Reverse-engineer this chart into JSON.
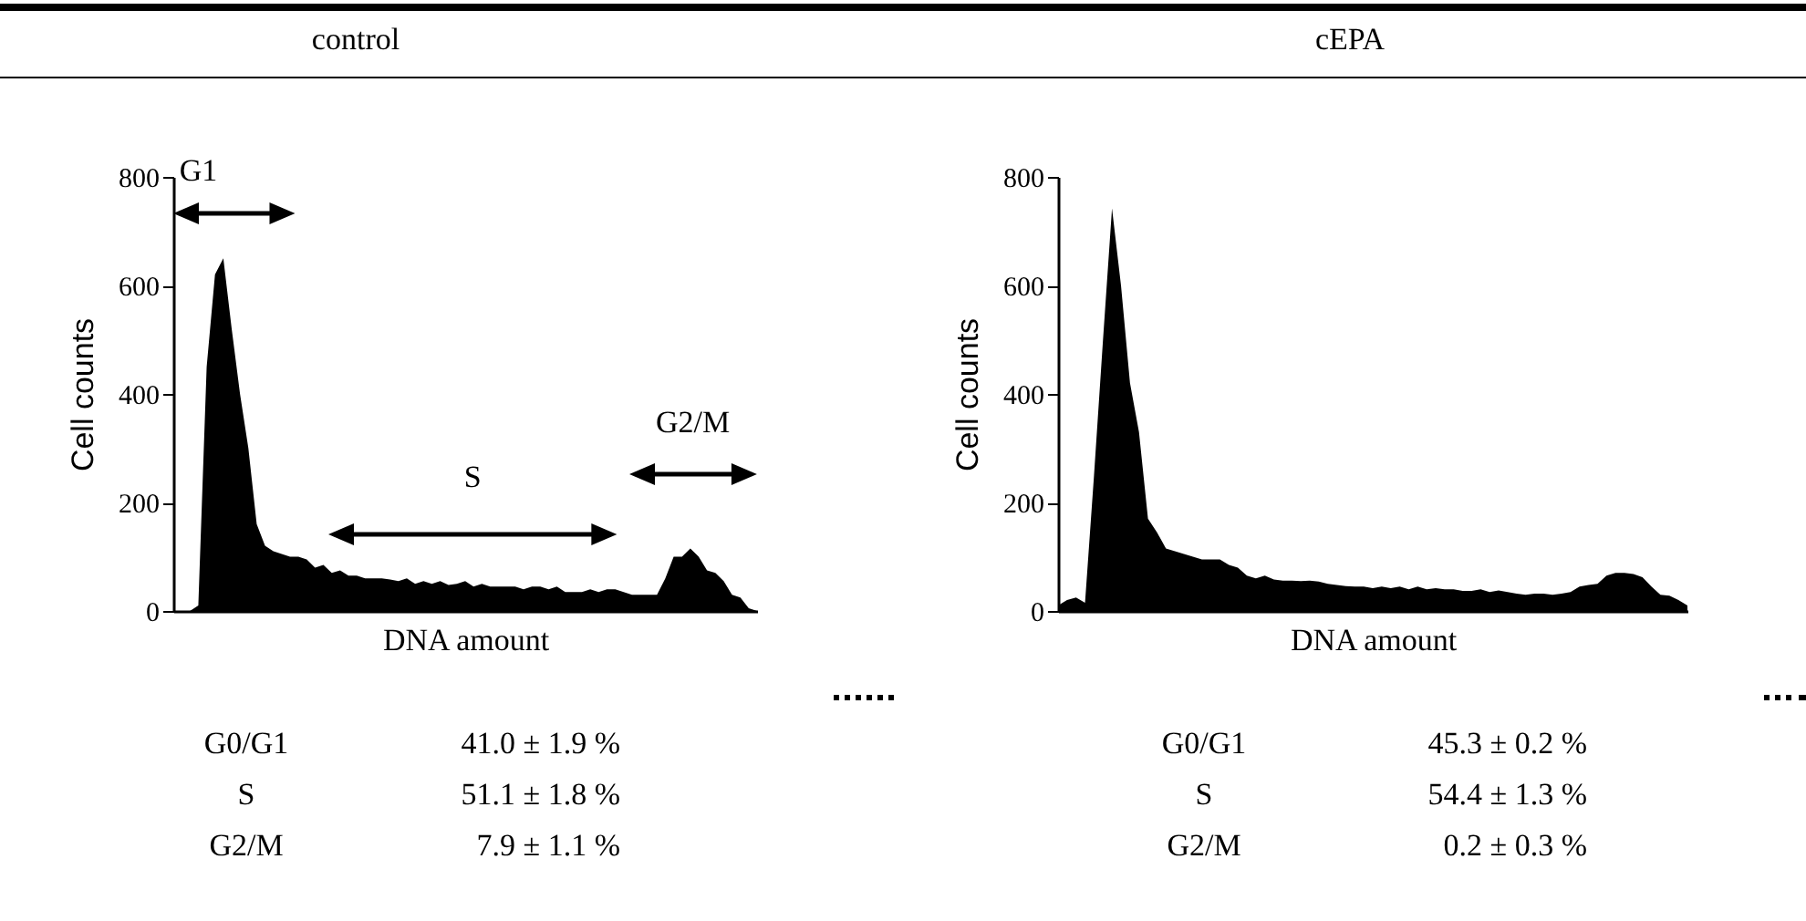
{
  "chart_data": [
    {
      "type": "area",
      "title": "control",
      "xlabel": "DNA amount",
      "ylabel": "Cell counts",
      "color": "#000000",
      "ylim": [
        0,
        800
      ],
      "yticks": [
        0,
        200,
        400,
        600,
        800
      ],
      "tick_labels": "y",
      "categories": [
        null,
        null,
        null,
        null,
        null,
        null,
        null,
        null,
        null,
        null,
        null,
        null,
        null,
        null,
        null,
        null,
        null,
        null,
        null,
        null,
        null,
        null,
        null,
        null,
        null,
        null,
        null,
        null,
        null,
        null,
        null,
        null,
        null,
        null,
        null,
        null,
        null,
        null,
        null,
        null,
        null,
        null,
        null,
        null,
        null,
        null,
        null,
        null,
        null,
        null,
        null,
        null,
        null,
        null,
        null,
        null,
        null,
        null,
        null,
        null,
        null,
        null,
        null,
        null,
        null,
        null,
        null,
        null,
        null,
        null,
        null
      ],
      "values": [
        0,
        0,
        0,
        10,
        450,
        620,
        650,
        520,
        400,
        300,
        160,
        120,
        110,
        105,
        100,
        100,
        95,
        80,
        85,
        70,
        75,
        65,
        65,
        60,
        60,
        60,
        58,
        55,
        60,
        50,
        55,
        50,
        55,
        48,
        50,
        55,
        45,
        50,
        45,
        45,
        45,
        45,
        40,
        45,
        45,
        40,
        45,
        35,
        35,
        35,
        40,
        35,
        40,
        40,
        35,
        30,
        30,
        30,
        30,
        60,
        100,
        100,
        115,
        100,
        75,
        70,
        55,
        30,
        25,
        5,
        0
      ],
      "annotations": [
        "G1",
        "S",
        "G2/M",
        "G0/G1",
        "41.0 ± 1.9 %",
        "S",
        "51.1 ± 1.8 %",
        "G2/M",
        "7.9 ± 1.1 %"
      ]
    },
    {
      "type": "area",
      "title": "cEPA",
      "xlabel": "DNA amount",
      "ylabel": "Cell counts",
      "color": "#000000",
      "ylim": [
        0,
        800
      ],
      "yticks": [
        0,
        200,
        400,
        600,
        800
      ],
      "tick_labels": "y",
      "categories": [
        null,
        null,
        null,
        null,
        null,
        null,
        null,
        null,
        null,
        null,
        null,
        null,
        null,
        null,
        null,
        null,
        null,
        null,
        null,
        null,
        null,
        null,
        null,
        null,
        null,
        null,
        null,
        null,
        null,
        null,
        null,
        null,
        null,
        null,
        null,
        null,
        null,
        null,
        null,
        null,
        null,
        null,
        null,
        null,
        null,
        null,
        null,
        null,
        null,
        null,
        null,
        null,
        null,
        null,
        null,
        null,
        null,
        null,
        null,
        null,
        null,
        null,
        null,
        null,
        null,
        null,
        null,
        null,
        null,
        null,
        null
      ],
      "values": [
        10,
        20,
        25,
        15,
        250,
        500,
        742,
        600,
        420,
        330,
        170,
        145,
        115,
        110,
        105,
        100,
        95,
        95,
        95,
        85,
        80,
        65,
        60,
        65,
        58,
        56,
        56,
        55,
        56,
        54,
        50,
        48,
        46,
        45,
        45,
        42,
        45,
        42,
        45,
        40,
        45,
        40,
        42,
        40,
        40,
        37,
        37,
        40,
        35,
        38,
        35,
        32,
        30,
        32,
        32,
        30,
        32,
        35,
        45,
        48,
        50,
        65,
        70,
        70,
        68,
        62,
        45,
        30,
        28,
        20,
        10
      ],
      "annotations": [
        "G0/G1",
        "45.3 ± 0.2 %",
        "S",
        "54.4 ± 1.3 %",
        "G2/M",
        "0.2 ± 0.3 %"
      ]
    }
  ]
}
